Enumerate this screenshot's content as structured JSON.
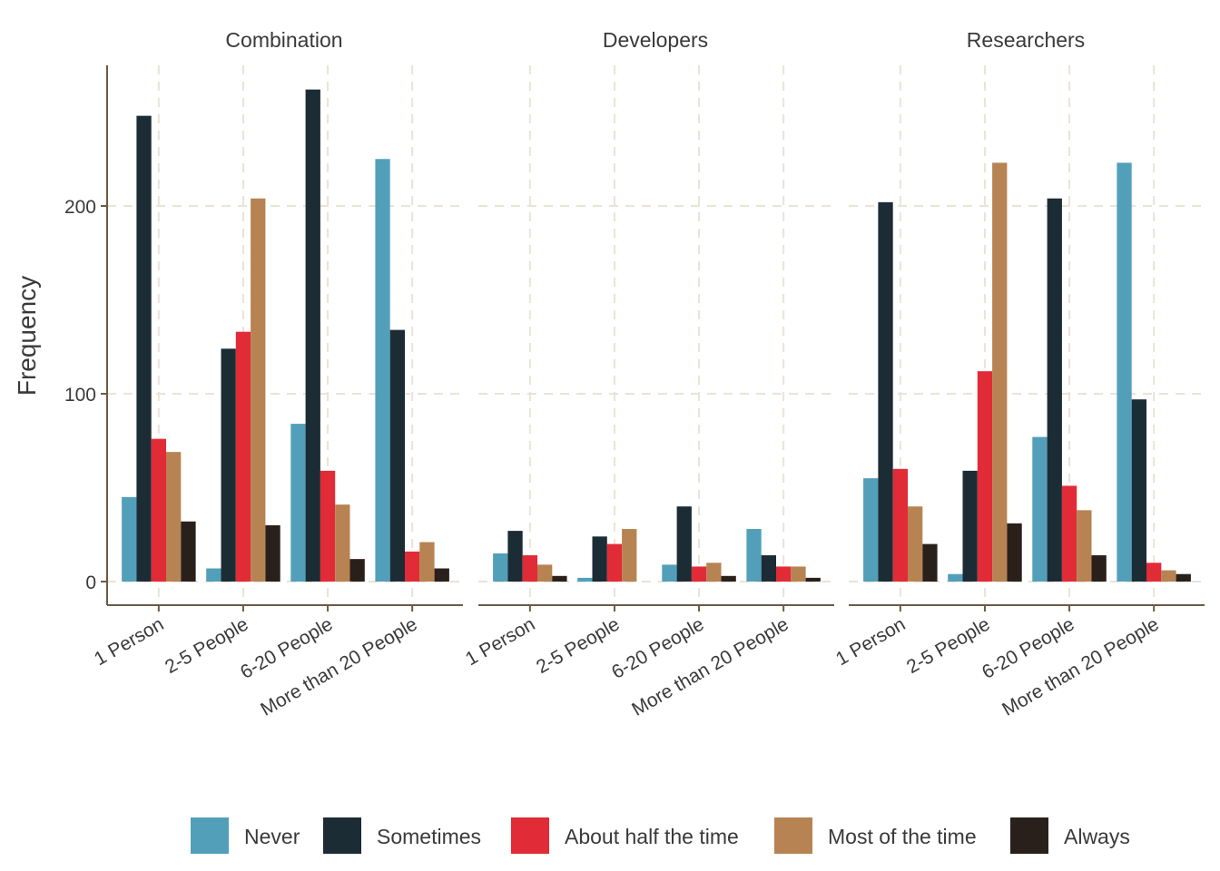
{
  "chart_data": {
    "type": "bar",
    "ylabel": "Frequency",
    "xlabel": "",
    "ylim": [
      -13,
      275
    ],
    "yticks": [
      0,
      100,
      200
    ],
    "grid": true,
    "legend_position": "bottom",
    "categories": [
      "1 Person",
      "2-5 People",
      "6-20 People",
      "More than 20 People"
    ],
    "series_names": [
      "Never",
      "Sometimes",
      "About half the time",
      "Most of the time",
      "Always"
    ],
    "colors": [
      "#529fba",
      "#1c2c35",
      "#e12b36",
      "#b78352",
      "#2a201b"
    ],
    "facets": [
      {
        "title": "Combination",
        "series": [
          {
            "name": "Never",
            "values": [
              45,
              7,
              84,
              225
            ]
          },
          {
            "name": "Sometimes",
            "values": [
              248,
              124,
              262,
              134
            ]
          },
          {
            "name": "About half the time",
            "values": [
              76,
              133,
              59,
              16
            ]
          },
          {
            "name": "Most of the time",
            "values": [
              69,
              204,
              41,
              21
            ]
          },
          {
            "name": "Always",
            "values": [
              32,
              30,
              12,
              7
            ]
          }
        ]
      },
      {
        "title": "Developers",
        "series": [
          {
            "name": "Never",
            "values": [
              15,
              2,
              9,
              28
            ]
          },
          {
            "name": "Sometimes",
            "values": [
              27,
              24,
              40,
              14
            ]
          },
          {
            "name": "About half the time",
            "values": [
              14,
              20,
              8,
              8
            ]
          },
          {
            "name": "Most of the time",
            "values": [
              9,
              28,
              10,
              8
            ]
          },
          {
            "name": "Always",
            "values": [
              3,
              0,
              3,
              2
            ]
          }
        ]
      },
      {
        "title": "Researchers",
        "series": [
          {
            "name": "Never",
            "values": [
              55,
              4,
              77,
              223
            ]
          },
          {
            "name": "Sometimes",
            "values": [
              202,
              59,
              204,
              97
            ]
          },
          {
            "name": "About half the time",
            "values": [
              60,
              112,
              51,
              10
            ]
          },
          {
            "name": "Most of the time",
            "values": [
              40,
              223,
              38,
              6
            ]
          },
          {
            "name": "Always",
            "values": [
              20,
              31,
              14,
              4
            ]
          }
        ]
      }
    ]
  }
}
